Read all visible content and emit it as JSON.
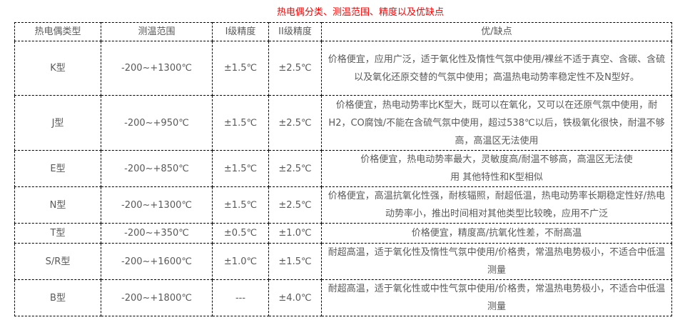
{
  "title": "热电偶分类、测温范围、精度以及优缺点",
  "colors": {
    "title": "#ff0000",
    "text": "#595959",
    "border": "#000000"
  },
  "headers": [
    "热电偶类型",
    "测温范围",
    "I级精度",
    "II级精度",
    "优/缺点"
  ],
  "rows": [
    [
      "K型",
      "-200~+1300℃",
      "±1.5℃",
      "±2.5℃",
      "价格便宜，应用广泛，适于氧化性及惰性气氛中使用/裸丝不适于真空、含碳、含硫以及氧化还原交替的气氛中使用；高温热电动势率稳定性不及N型好。"
    ],
    [
      "J型",
      "-200~+950℃",
      "±1.5℃",
      "±2.5℃",
      "价格便宜，热电动势率比K型大，既可以在氧化，又可以在还原气氛中使用，耐H2，CO腐蚀/不能在含硫气氛中使用，超过538℃以后，铁极氧化很快，耐温不够高，高温区无法使用"
    ],
    [
      "E型",
      "-200~+850℃",
      "±1.5℃",
      "±2.5℃",
      "价格便宜，热电动势率最大，灵敏度高/耐温不够高，高温区无法使用 其他特性和K型相似"
    ],
    [
      "N型",
      "-200~+1300℃",
      "±1.5℃",
      "±2.5℃",
      "价格便宜，高温抗氧化性强，耐核辐照，耐超低温，热电动势率长期稳定性好/热电动势率小，推出时间相对其他类型比较晚，应用不广泛"
    ],
    [
      "T型",
      "-200~+350℃",
      "±0.5℃",
      "±1.0℃",
      "价格便宜，精度高/抗氧化性差，不耐高温"
    ],
    [
      "S/R型",
      "-200~+1600℃",
      "±1.0℃",
      "±1.5℃",
      "耐超高温，适于氧化性及惰性气氛中使用/价格贵，常温热电势极小，不适合中低温测量"
    ],
    [
      "B型",
      "-200~+1800℃",
      "---",
      "±4.0℃",
      "耐超高温，适于氧化性或中性气氛中使用/价格贵，常温热电势极小，不适合中低温测量"
    ]
  ]
}
